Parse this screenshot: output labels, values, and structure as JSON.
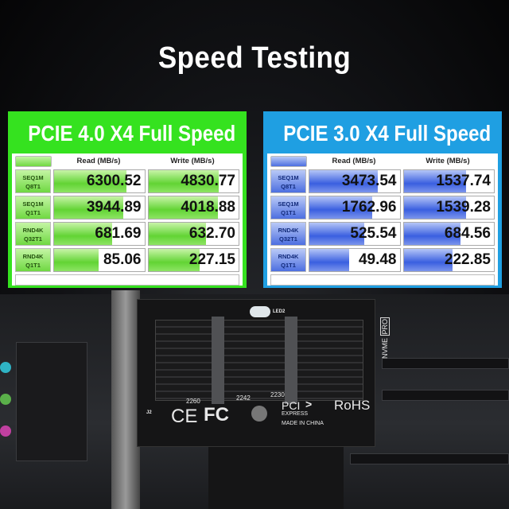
{
  "title": "Speed Testing",
  "colors": {
    "green_panel": "#35e21f",
    "blue_panel": "#1f9fe2"
  },
  "panels": [
    {
      "heading": "PCIE 4.0 X4 Full Speed",
      "read_label": "Read (MB/s)",
      "write_label": "Write (MB/s)",
      "rows": [
        {
          "test": "SEQ1M",
          "queue": "Q8T1",
          "read": "6300.52",
          "write": "4830.77",
          "read_fill": 0.8,
          "write_fill": 0.78
        },
        {
          "test": "SEQ1M",
          "queue": "Q1T1",
          "read": "3944.89",
          "write": "4018.88",
          "read_fill": 0.77,
          "write_fill": 0.77
        },
        {
          "test": "RND4K",
          "queue": "Q32T1",
          "read": "681.69",
          "write": "632.70",
          "read_fill": 0.64,
          "write_fill": 0.64
        },
        {
          "test": "RND4K",
          "queue": "Q1T1",
          "read": "85.06",
          "write": "227.15",
          "read_fill": 0.49,
          "write_fill": 0.57
        }
      ]
    },
    {
      "heading": "PCIE 3.0 X4 Full Speed",
      "read_label": "Read (MB/s)",
      "write_label": "Write (MB/s)",
      "rows": [
        {
          "test": "SEQ1M",
          "queue": "Q8T1",
          "read": "3473.54",
          "write": "1537.74",
          "read_fill": 0.76,
          "write_fill": 0.69
        },
        {
          "test": "SEQ1M",
          "queue": "Q1T1",
          "read": "1762.96",
          "write": "1539.28",
          "read_fill": 0.7,
          "write_fill": 0.69
        },
        {
          "test": "RND4K",
          "queue": "Q32T1",
          "read": "525.54",
          "write": "684.56",
          "read_fill": 0.61,
          "write_fill": 0.63
        },
        {
          "test": "RND4K",
          "queue": "Q1T1",
          "read": "49.48",
          "write": "222.85",
          "read_fill": 0.44,
          "write_fill": 0.54
        }
      ]
    }
  ],
  "card": {
    "nvme": "NVME",
    "pro": "PRO",
    "led": "LED2",
    "sizes": [
      "2260",
      "2242",
      "2230"
    ],
    "ce": "CE",
    "fc": "FC",
    "pci": "PCI",
    "express": "EXPRESS",
    "rohs": "RoHS",
    "made": "MADE IN CHINA",
    "j2": "J2"
  }
}
